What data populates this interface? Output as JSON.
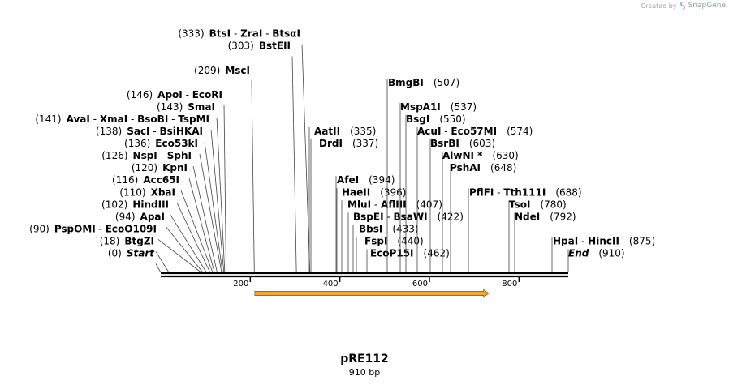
{
  "watermark": {
    "prefix": "Created by",
    "brand": "SnapGene"
  },
  "plasmid": {
    "name": "pRE112",
    "size_label": "910 bp",
    "length": 910
  },
  "axis": {
    "ticks": [
      200,
      400,
      600,
      800
    ]
  },
  "features": [
    {
      "name": "orange-feature-arrow",
      "start": 210,
      "end": 730,
      "direction": "forward",
      "color": "#f0a830"
    }
  ],
  "sites": [
    {
      "names": [
        "Start"
      ],
      "pos": "(0)",
      "bp": 0,
      "side": "left",
      "italic": true
    },
    {
      "names": [
        "BtgZI"
      ],
      "pos": "(18)",
      "bp": 18,
      "side": "left"
    },
    {
      "names": [
        "PspOMI",
        "EcoO109I"
      ],
      "pos": "(90)",
      "bp": 90,
      "side": "left"
    },
    {
      "names": [
        "ApaI"
      ],
      "pos": "(94)",
      "bp": 94,
      "side": "left"
    },
    {
      "names": [
        "HindIII"
      ],
      "pos": "(102)",
      "bp": 102,
      "side": "left"
    },
    {
      "names": [
        "XbaI"
      ],
      "pos": "(110)",
      "bp": 110,
      "side": "left"
    },
    {
      "names": [
        "Acc65I"
      ],
      "pos": "(116)",
      "bp": 116,
      "side": "left"
    },
    {
      "names": [
        "KpnI"
      ],
      "pos": "(120)",
      "bp": 120,
      "side": "left"
    },
    {
      "names": [
        "NspI",
        "SphI"
      ],
      "pos": "(126)",
      "bp": 126,
      "side": "left"
    },
    {
      "names": [
        "Eco53kI"
      ],
      "pos": "(136)",
      "bp": 136,
      "side": "left"
    },
    {
      "names": [
        "SacI",
        "BsiHKAI"
      ],
      "pos": "(138)",
      "bp": 138,
      "side": "left"
    },
    {
      "names": [
        "AvaI",
        "XmaI",
        "BsoBI",
        "TspMI"
      ],
      "pos": "(141)",
      "bp": 141,
      "side": "left"
    },
    {
      "names": [
        "SmaI"
      ],
      "pos": "(143)",
      "bp": 143,
      "side": "left"
    },
    {
      "names": [
        "ApoI",
        "EcoRI"
      ],
      "pos": "(146)",
      "bp": 146,
      "side": "left"
    },
    {
      "names": [
        "MscI"
      ],
      "pos": "(209)",
      "bp": 209,
      "side": "left"
    },
    {
      "names": [
        "BstEII"
      ],
      "pos": "(303)",
      "bp": 303,
      "side": "left"
    },
    {
      "names": [
        "BtsI",
        "ZraI",
        "BtsαI"
      ],
      "pos": "(333)",
      "bp": 333,
      "side": "left"
    },
    {
      "names": [
        "AatII"
      ],
      "pos": "(335)",
      "bp": 335,
      "side": "right"
    },
    {
      "names": [
        "DrdI"
      ],
      "pos": "(337)",
      "bp": 337,
      "side": "right"
    },
    {
      "names": [
        "AfeI"
      ],
      "pos": "(394)",
      "bp": 394,
      "side": "right"
    },
    {
      "names": [
        "HaeII"
      ],
      "pos": "(396)",
      "bp": 396,
      "side": "right"
    },
    {
      "names": [
        "MluI",
        "AflIII"
      ],
      "pos": "(407)",
      "bp": 407,
      "side": "right"
    },
    {
      "names": [
        "BspEI",
        "BsaWI"
      ],
      "pos": "(422)",
      "bp": 422,
      "side": "right"
    },
    {
      "names": [
        "BbsI"
      ],
      "pos": "(433)",
      "bp": 433,
      "side": "right"
    },
    {
      "names": [
        "FspI"
      ],
      "pos": "(440)",
      "bp": 440,
      "side": "right"
    },
    {
      "names": [
        "EcoP15I"
      ],
      "pos": "(462)",
      "bp": 462,
      "side": "right"
    },
    {
      "names": [
        "BmgBI"
      ],
      "pos": "(507)",
      "bp": 507,
      "side": "right"
    },
    {
      "names": [
        "MspA1I"
      ],
      "pos": "(537)",
      "bp": 537,
      "side": "right"
    },
    {
      "names": [
        "BsgI"
      ],
      "pos": "(550)",
      "bp": 550,
      "side": "right"
    },
    {
      "names": [
        "AcuI",
        "Eco57MI"
      ],
      "pos": "(574)",
      "bp": 574,
      "side": "right"
    },
    {
      "names": [
        "BsrBI"
      ],
      "pos": "(603)",
      "bp": 603,
      "side": "right"
    },
    {
      "names": [
        "AlwNI *"
      ],
      "pos": "(630)",
      "bp": 630,
      "side": "right"
    },
    {
      "names": [
        "PshAI"
      ],
      "pos": "(648)",
      "bp": 648,
      "side": "right"
    },
    {
      "names": [
        "PflFI",
        "Tth111I"
      ],
      "pos": "(688)",
      "bp": 688,
      "side": "right"
    },
    {
      "names": [
        "TsoI"
      ],
      "pos": "(780)",
      "bp": 780,
      "side": "right"
    },
    {
      "names": [
        "NdeI"
      ],
      "pos": "(792)",
      "bp": 792,
      "side": "right"
    },
    {
      "names": [
        "HpaI",
        "HincII"
      ],
      "pos": "(875)",
      "bp": 875,
      "side": "right"
    },
    {
      "names": [
        "End"
      ],
      "pos": "(910)",
      "bp": 910,
      "side": "right",
      "italic": true
    }
  ]
}
